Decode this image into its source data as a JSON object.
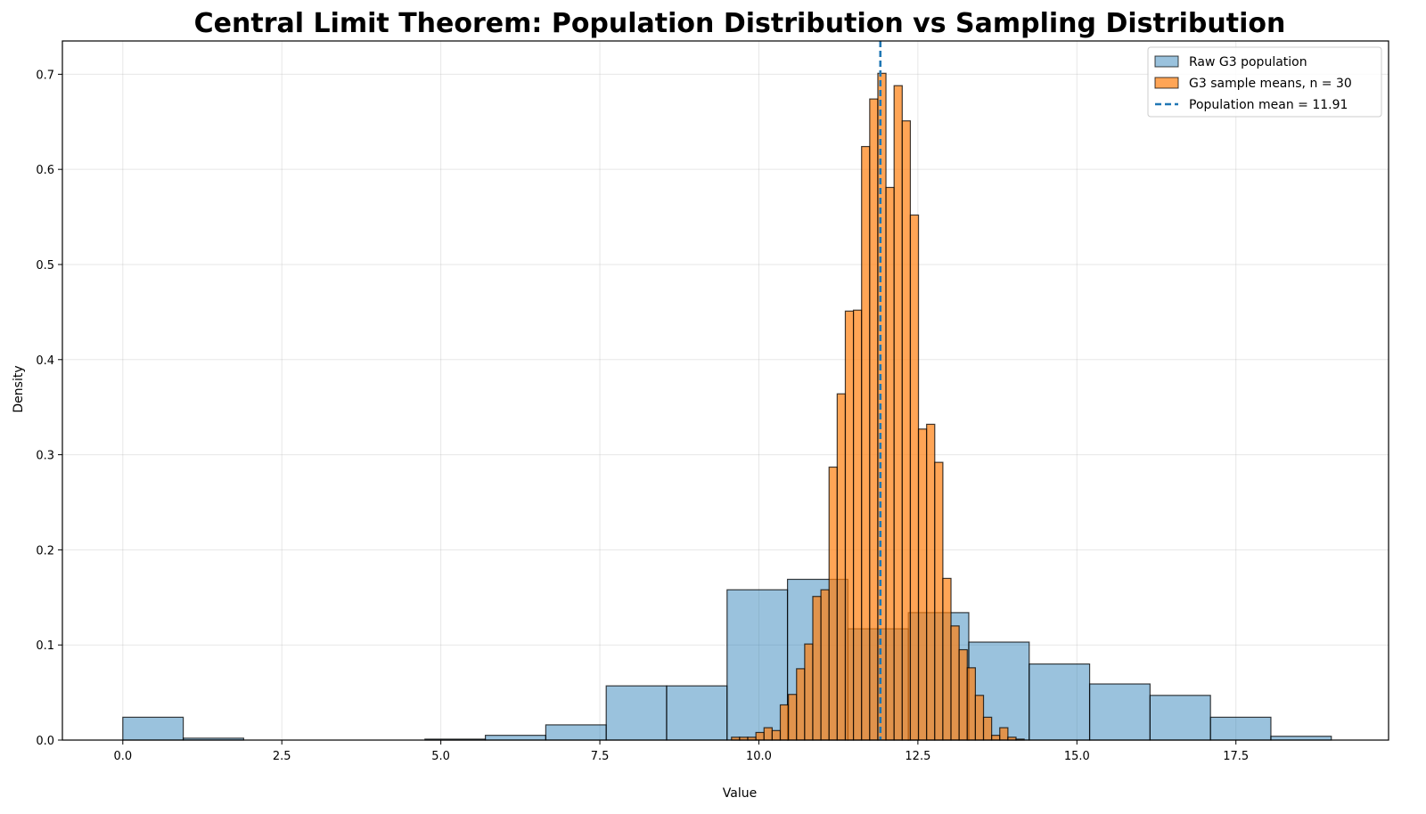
{
  "chart_data": {
    "type": "histogram",
    "title": "Central Limit Theorem: Population Distribution vs Sampling Distribution",
    "xlabel": "Value",
    "ylabel": "Density",
    "xlim": [
      -0.95,
      19.9
    ],
    "ylim": [
      0,
      0.735
    ],
    "xticks": [
      0.0,
      2.5,
      5.0,
      7.5,
      10.0,
      12.5,
      15.0,
      17.5
    ],
    "xtick_labels": [
      "0.0",
      "2.5",
      "5.0",
      "7.5",
      "10.0",
      "12.5",
      "15.0",
      "17.5"
    ],
    "yticks": [
      0.0,
      0.1,
      0.2,
      0.3,
      0.4,
      0.5,
      0.6,
      0.7
    ],
    "ytick_labels": [
      "0.0",
      "0.1",
      "0.2",
      "0.3",
      "0.4",
      "0.5",
      "0.6",
      "0.7"
    ],
    "grid": true,
    "legend_position": "top-right",
    "population_mean": 11.91,
    "colors": {
      "population": "#1f77b4",
      "sample_means": "#ff7f0e",
      "mean_line": "#1f77b4",
      "edge": "#000000"
    },
    "series": [
      {
        "name": "Raw G3 population",
        "kind": "histogram",
        "bin_start": 0,
        "bin_width": 0.95,
        "values": [
          0.024,
          0.002,
          0,
          0,
          0,
          0.001,
          0.005,
          0.016,
          0.057,
          0.057,
          0.158,
          0.169,
          0.117,
          0.134,
          0.103,
          0.08,
          0.059,
          0.047,
          0.024,
          0.004
        ]
      },
      {
        "name": "G3 sample means, n = 30",
        "kind": "histogram",
        "bin_start": 9.57,
        "bin_width": 0.1278,
        "values": [
          0.003,
          0.003,
          0.003,
          0.008,
          0.013,
          0.01,
          0.037,
          0.048,
          0.075,
          0.101,
          0.151,
          0.158,
          0.287,
          0.364,
          0.451,
          0.452,
          0.624,
          0.674,
          0.701,
          0.581,
          0.688,
          0.651,
          0.552,
          0.327,
          0.332,
          0.292,
          0.17,
          0.12,
          0.095,
          0.076,
          0.047,
          0.024,
          0.005,
          0.013,
          0.003,
          0.001
        ]
      },
      {
        "name": "Population mean = 11.91",
        "kind": "vline",
        "x": 11.91
      }
    ]
  }
}
